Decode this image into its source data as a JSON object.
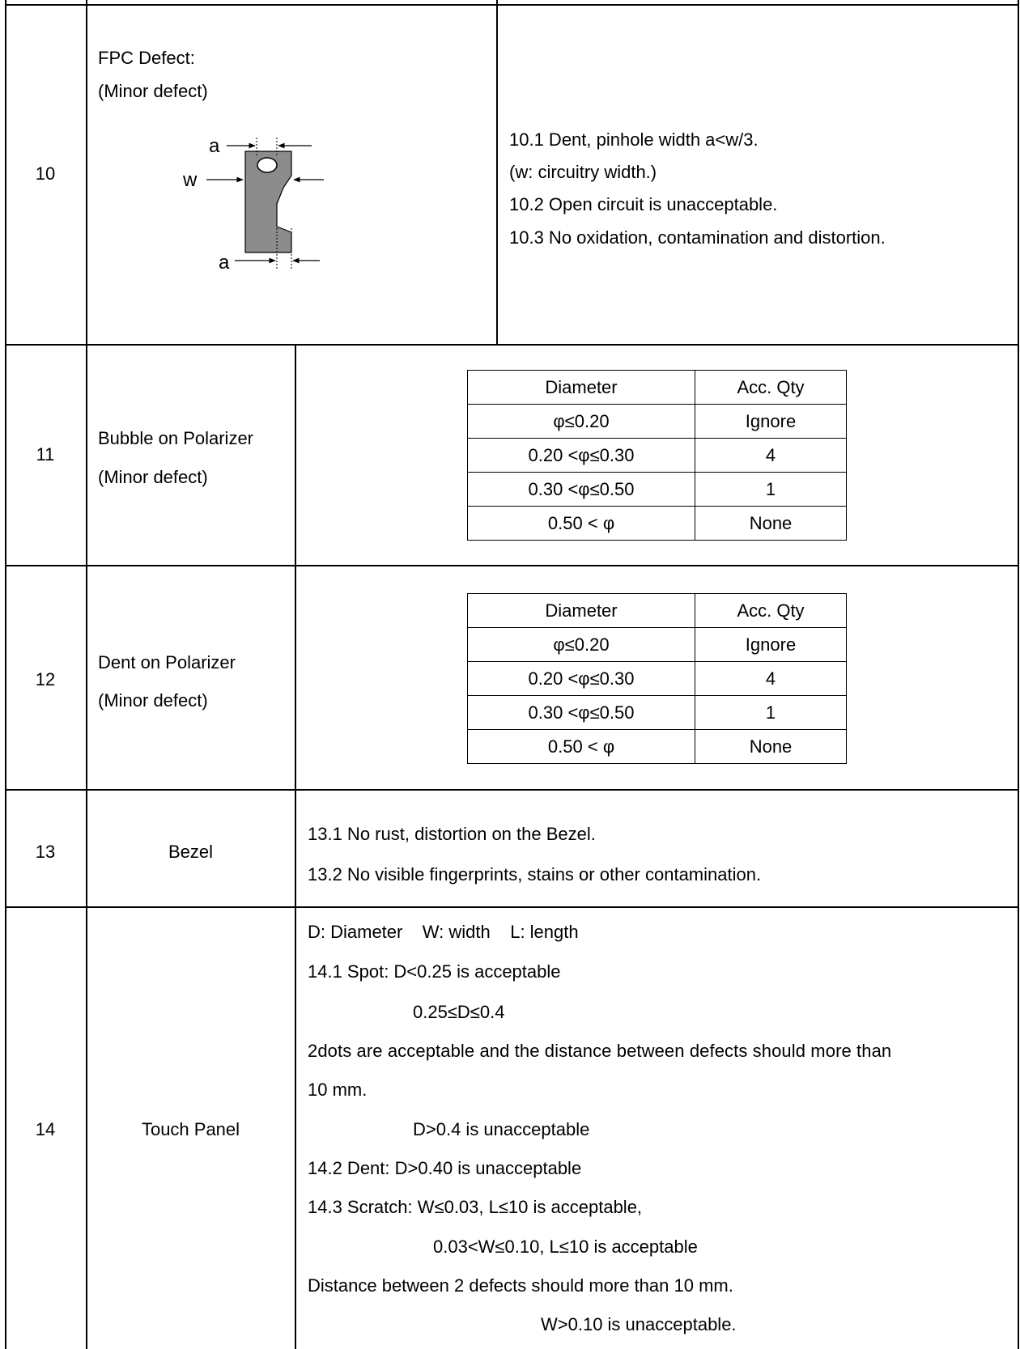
{
  "rows": [
    {
      "number": "10",
      "title": "FPC Defect:",
      "subtitle": "(Minor defect)",
      "diagram_labels": {
        "a_top": "a",
        "w": "w",
        "a_bottom": "a"
      },
      "criteria": [
        "10.1 Dent, pinhole width a<w/3.",
        "(w: circuitry width.)",
        "10.2 Open circuit is unacceptable.",
        "10.3 No oxidation, contamination and distortion."
      ]
    },
    {
      "number": "11",
      "title": "Bubble on Polarizer",
      "subtitle": "(Minor defect)",
      "table": {
        "headers": [
          "Diameter",
          "Acc. Qty"
        ],
        "rows": [
          [
            "φ≤0.20",
            "Ignore"
          ],
          [
            "0.20 <φ≤0.30",
            "4"
          ],
          [
            "0.30 <φ≤0.50",
            "1"
          ],
          [
            "0.50 < φ",
            "None"
          ]
        ]
      }
    },
    {
      "number": "12",
      "title": "Dent on Polarizer",
      "subtitle": "(Minor defect)",
      "table": {
        "headers": [
          "Diameter",
          "Acc. Qty"
        ],
        "rows": [
          [
            "φ≤0.20",
            "Ignore"
          ],
          [
            "0.20 <φ≤0.30",
            "4"
          ],
          [
            "0.30 <φ≤0.50",
            "1"
          ],
          [
            "0.50 < φ",
            "None"
          ]
        ]
      }
    },
    {
      "number": "13",
      "title": "Bezel",
      "criteria": [
        "13.1 No rust, distortion on the Bezel.",
        "13.2 No visible fingerprints, stains or other contamination."
      ]
    },
    {
      "number": "14",
      "title": "Touch Panel",
      "criteria": [
        "D: Diameter    W: width    L: length",
        "14.1 Spot: D<0.25 is acceptable",
        "0.25≤D≤0.4",
        "2dots are acceptable and the distance between defects should more than",
        "10 mm.",
        "D>0.4 is unacceptable",
        "14.2 Dent: D>0.40 is unacceptable",
        "14.3 Scratch: W≤0.03, L≤10 is acceptable,",
        "0.03<W≤0.10, L≤10 is acceptable",
        "Distance between 2 defects should more than 10 mm.",
        "W>0.10 is unacceptable."
      ]
    }
  ],
  "colors": {
    "trace_fill": "#8c8c8c",
    "border": "#000000"
  }
}
